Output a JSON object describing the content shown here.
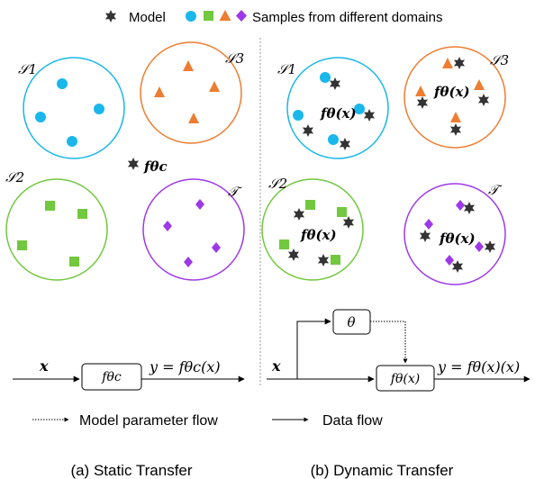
{
  "legend": {
    "model_label": "Model",
    "samples_label": "Samples from different domains",
    "param_flow_label": "Model parameter flow",
    "data_flow_label": "Data flow"
  },
  "colors": {
    "domain1": "#1ab7ea",
    "domain2": "#72c83e",
    "domain3": "#ee7d31",
    "target": "#9d39e8",
    "model_star": "#333333",
    "divider": "#999999"
  },
  "panels": {
    "static": {
      "caption": "(a) Static Transfer",
      "domain_labels": {
        "s1": "𝒮1",
        "s2": "𝒮2",
        "s3": "𝒮3",
        "t": "𝒯"
      },
      "model_label": "fθc",
      "flow": {
        "x": "x",
        "box": "fθc",
        "output": "y = fθc(x)"
      }
    },
    "dynamic": {
      "caption": "(b) Dynamic Transfer",
      "domain_labels": {
        "s1": "𝒮1",
        "s2": "𝒮2",
        "s3": "𝒮3",
        "t": "𝒯"
      },
      "model_label": "fθ(x)",
      "flow": {
        "x": "x",
        "theta": "θ",
        "box": "fθ(x)",
        "output": "y = fθ(x)(x)"
      }
    }
  }
}
